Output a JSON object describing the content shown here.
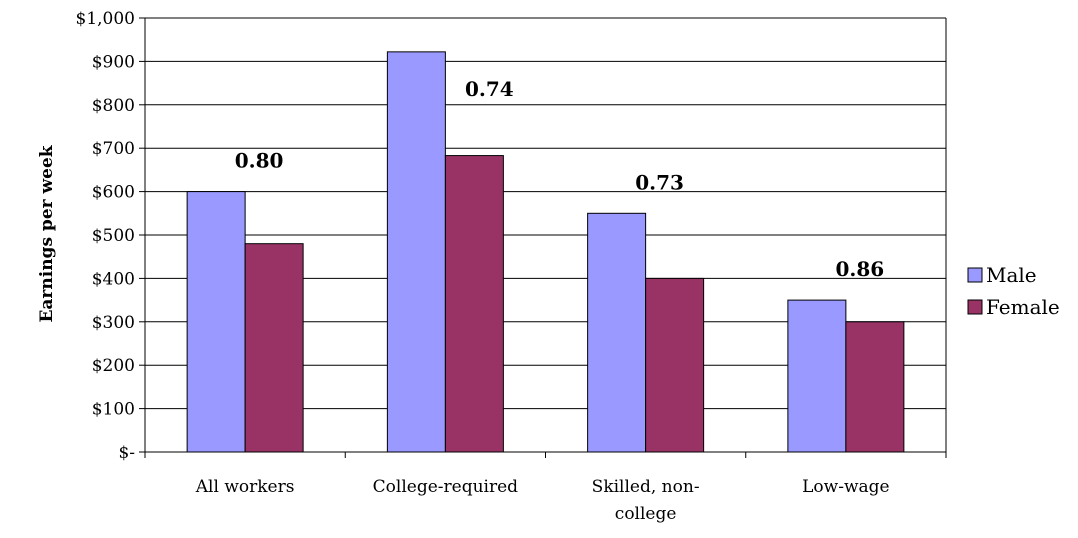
{
  "chart_data": {
    "type": "bar",
    "title": "",
    "xlabel": "",
    "ylabel": "Earnings per week",
    "categories": [
      [
        "All workers"
      ],
      [
        "College-required"
      ],
      [
        "Skilled, non-",
        "college"
      ],
      [
        "Low-wage"
      ]
    ],
    "series": [
      {
        "name": "Male",
        "values": [
          600,
          922,
          550,
          350
        ],
        "color": "#9999ff"
      },
      {
        "name": "Female",
        "values": [
          480,
          683,
          400,
          300
        ],
        "color": "#993366"
      }
    ],
    "annotations": [
      "0.80",
      "0.74",
      "0.73",
      "0.86"
    ],
    "ylim": [
      0,
      1000
    ],
    "yticks": [
      0,
      100,
      200,
      300,
      400,
      500,
      600,
      700,
      800,
      900,
      1000
    ],
    "ytick_labels": [
      "$-",
      "$100",
      "$200",
      "$300",
      "$400",
      "$500",
      "$600",
      "$700",
      "$800",
      "$900",
      "$1,000"
    ],
    "grid": true,
    "legend_position": "right"
  }
}
